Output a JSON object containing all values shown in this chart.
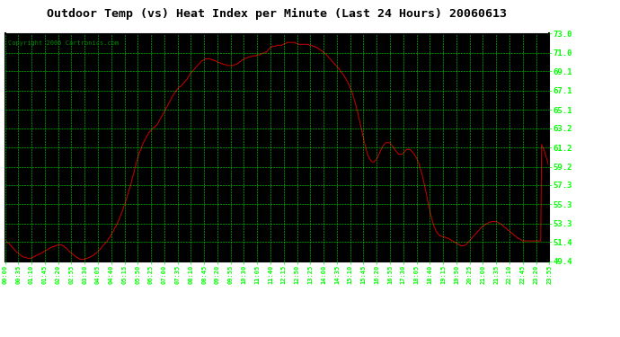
{
  "title": "Outdoor Temp (vs) Heat Index per Minute (Last 24 Hours) 20060613",
  "copyright": "Copyright 2006 Cartronics.com",
  "bg_color": "#000000",
  "fig_bg_color": "#ffffff",
  "grid_color": "#00ff00",
  "line_color": "#cc0000",
  "text_color": "#00ff00",
  "title_color": "#000000",
  "yticks": [
    49.4,
    51.4,
    53.3,
    55.3,
    57.3,
    59.2,
    61.2,
    63.2,
    65.1,
    67.1,
    69.1,
    71.0,
    73.0
  ],
  "ymin": 49.4,
  "ymax": 73.0,
  "xtick_labels": [
    "00:00",
    "00:35",
    "01:10",
    "01:45",
    "02:20",
    "02:55",
    "03:30",
    "04:05",
    "04:40",
    "05:15",
    "05:50",
    "06:25",
    "07:00",
    "07:35",
    "08:10",
    "08:45",
    "09:20",
    "09:55",
    "10:30",
    "11:05",
    "11:40",
    "12:15",
    "12:50",
    "13:25",
    "14:00",
    "14:35",
    "15:10",
    "15:45",
    "16:20",
    "16:55",
    "17:30",
    "18:05",
    "18:40",
    "19:15",
    "19:50",
    "20:25",
    "21:00",
    "21:35",
    "22:10",
    "22:45",
    "23:20",
    "23:55"
  ],
  "data_y": [
    51.6,
    51.5,
    51.4,
    51.3,
    51.3,
    51.2,
    51.1,
    51.0,
    50.9,
    50.8,
    50.7,
    50.6,
    50.5,
    50.4,
    50.3,
    50.3,
    50.2,
    50.1,
    50.0,
    50.0,
    49.9,
    49.9,
    49.8,
    49.8,
    49.8,
    49.8,
    49.7,
    49.7,
    49.7,
    49.7,
    49.7,
    49.8,
    49.8,
    49.8,
    49.9,
    49.9,
    50.0,
    50.0,
    50.1,
    50.1,
    50.1,
    50.2,
    50.2,
    50.3,
    50.3,
    50.4,
    50.4,
    50.5,
    50.5,
    50.6,
    50.6,
    50.7,
    50.7,
    50.8,
    50.8,
    50.9,
    50.9,
    50.9,
    51.0,
    51.0,
    51.0,
    51.1,
    51.1,
    51.1,
    51.1,
    51.1,
    51.1,
    51.0,
    51.0,
    50.9,
    50.8,
    50.8,
    50.7,
    50.6,
    50.5,
    50.4,
    50.3,
    50.3,
    50.2,
    50.1,
    50.0,
    50.0,
    49.9,
    49.8,
    49.8,
    49.7,
    49.7,
    49.6,
    49.6,
    49.6,
    49.6,
    49.6,
    49.6,
    49.6,
    49.7,
    49.7,
    49.7,
    49.8,
    49.8,
    49.8,
    49.9,
    49.9,
    50.0,
    50.0,
    50.1,
    50.2,
    50.2,
    50.3,
    50.4,
    50.5,
    50.6,
    50.7,
    50.8,
    50.9,
    51.0,
    51.1,
    51.2,
    51.3,
    51.4,
    51.5,
    51.7,
    51.8,
    51.9,
    52.1,
    52.2,
    52.4,
    52.5,
    52.7,
    52.9,
    53.0,
    53.2,
    53.4,
    53.6,
    53.8,
    54.0,
    54.3,
    54.5,
    54.7,
    55.0,
    55.3,
    55.5,
    55.8,
    56.1,
    56.4,
    56.7,
    57.0,
    57.3,
    57.6,
    58.0,
    58.3,
    58.6,
    59.0,
    59.3,
    59.7,
    60.0,
    60.3,
    60.6,
    60.8,
    61.0,
    61.3,
    61.5,
    61.7,
    61.9,
    62.0,
    62.2,
    62.4,
    62.5,
    62.7,
    62.8,
    62.9,
    63.0,
    63.1,
    63.2,
    63.3,
    63.3,
    63.4,
    63.5,
    63.6,
    63.7,
    63.9,
    64.1,
    64.2,
    64.4,
    64.5,
    64.7,
    64.9,
    65.0,
    65.2,
    65.4,
    65.5,
    65.7,
    65.9,
    66.0,
    66.2,
    66.4,
    66.5,
    66.7,
    66.8,
    67.0,
    67.1,
    67.2,
    67.3,
    67.4,
    67.5,
    67.5,
    67.6,
    67.7,
    67.8,
    67.9,
    68.0,
    68.1,
    68.2,
    68.3,
    68.5,
    68.6,
    68.8,
    68.9,
    69.0,
    69.1,
    69.2,
    69.3,
    69.4,
    69.5,
    69.6,
    69.7,
    69.8,
    69.9,
    70.0,
    70.1,
    70.2,
    70.2,
    70.3,
    70.3,
    70.4,
    70.4,
    70.4,
    70.4,
    70.4,
    70.4,
    70.4,
    70.3,
    70.3,
    70.3,
    70.2,
    70.2,
    70.2,
    70.1,
    70.1,
    70.0,
    70.0,
    70.0,
    69.9,
    69.9,
    69.9,
    69.8,
    69.8,
    69.8,
    69.8,
    69.7,
    69.7,
    69.7,
    69.7,
    69.7,
    69.7,
    69.7,
    69.7,
    69.7,
    69.8,
    69.8,
    69.8,
    69.9,
    69.9,
    70.0,
    70.1,
    70.1,
    70.2,
    70.3,
    70.3,
    70.4,
    70.4,
    70.5,
    70.5,
    70.5,
    70.6,
    70.6,
    70.6,
    70.6,
    70.7,
    70.7,
    70.7,
    70.7,
    70.7,
    70.7,
    70.8,
    70.8,
    70.8,
    70.8,
    70.9,
    70.9,
    70.9,
    71.0,
    71.0,
    71.0,
    71.1,
    71.1,
    71.2,
    71.3,
    71.4,
    71.5,
    71.6,
    71.6,
    71.7,
    71.7,
    71.7,
    71.7,
    71.7,
    71.8,
    71.8,
    71.8,
    71.8,
    71.8,
    71.8,
    71.8,
    71.9,
    71.9,
    72.0,
    72.0,
    72.0,
    72.1,
    72.1,
    72.1,
    72.1,
    72.1,
    72.1,
    72.1,
    72.1,
    72.1,
    72.1,
    72.0,
    72.0,
    72.0,
    71.9,
    71.9,
    71.9,
    71.9,
    71.9,
    71.9,
    71.9,
    71.9,
    71.9,
    71.9,
    71.9,
    71.9,
    71.9,
    71.8,
    71.8,
    71.8,
    71.8,
    71.7,
    71.7,
    71.7,
    71.6,
    71.6,
    71.5,
    71.5,
    71.4,
    71.4,
    71.3,
    71.2,
    71.2,
    71.1,
    71.0,
    71.0,
    70.9,
    70.8,
    70.7,
    70.6,
    70.5,
    70.4,
    70.3,
    70.2,
    70.1,
    70.0,
    69.9,
    69.8,
    69.7,
    69.6,
    69.5,
    69.4,
    69.3,
    69.2,
    69.0,
    68.9,
    68.8,
    68.7,
    68.5,
    68.4,
    68.2,
    68.1,
    67.9,
    67.7,
    67.5,
    67.3,
    67.1,
    66.8,
    66.5,
    66.2,
    65.9,
    65.6,
    65.2,
    64.9,
    64.5,
    64.1,
    63.7,
    63.3,
    62.9,
    62.5,
    62.1,
    61.7,
    61.3,
    61.0,
    60.7,
    60.4,
    60.2,
    60.0,
    59.9,
    59.8,
    59.7,
    59.7,
    59.7,
    59.8,
    59.9,
    60.0,
    60.1,
    60.3,
    60.5,
    60.7,
    60.9,
    61.1,
    61.3,
    61.4,
    61.5,
    61.6,
    61.7,
    61.7,
    61.7,
    61.7,
    61.7,
    61.6,
    61.5,
    61.4,
    61.3,
    61.2,
    61.0,
    60.9,
    60.8,
    60.7,
    60.6,
    60.5,
    60.5,
    60.5,
    60.5,
    60.5,
    60.6,
    60.7,
    60.8,
    60.9,
    61.0,
    61.0,
    61.0,
    61.0,
    61.0,
    60.9,
    60.8,
    60.7,
    60.6,
    60.5,
    60.3,
    60.2,
    60.0,
    59.8,
    59.6,
    59.3,
    59.0,
    58.7,
    58.4,
    58.0,
    57.6,
    57.2,
    56.8,
    56.4,
    55.9,
    55.5,
    55.1,
    54.7,
    54.3,
    53.9,
    53.6,
    53.3,
    53.0,
    52.8,
    52.6,
    52.4,
    52.3,
    52.2,
    52.1,
    52.0,
    52.0,
    52.0,
    51.9,
    51.9,
    51.9,
    51.9,
    51.8,
    51.8,
    51.8,
    51.7,
    51.7,
    51.6,
    51.6,
    51.5,
    51.5,
    51.4,
    51.4,
    51.3,
    51.3,
    51.2,
    51.2,
    51.1,
    51.1,
    51.0,
    51.0,
    51.0,
    51.0,
    51.0,
    51.1,
    51.1,
    51.2,
    51.3,
    51.4,
    51.5,
    51.6,
    51.7,
    51.8,
    51.9,
    52.0,
    52.1,
    52.2,
    52.3,
    52.4,
    52.5,
    52.6,
    52.7,
    52.8,
    52.9,
    53.0,
    53.0,
    53.1,
    53.2,
    53.2,
    53.3,
    53.3,
    53.4,
    53.4,
    53.4,
    53.5,
    53.5,
    53.5,
    53.5,
    53.5,
    53.5,
    53.5,
    53.5,
    53.4,
    53.4,
    53.3,
    53.3,
    53.2,
    53.2,
    53.1,
    53.0,
    52.9,
    52.9,
    52.8,
    52.7,
    52.6,
    52.6,
    52.5,
    52.4,
    52.3,
    52.3,
    52.2,
    52.1,
    52.0,
    52.0,
    51.9,
    51.8,
    51.8,
    51.7,
    51.7,
    51.6,
    51.6,
    51.5,
    51.5,
    51.5,
    51.5,
    51.5,
    51.5,
    51.5,
    51.5,
    51.5,
    51.5,
    51.5,
    51.5,
    51.5,
    51.5,
    51.5,
    51.5,
    51.5,
    51.5,
    51.5,
    51.5,
    51.5,
    51.5,
    61.5,
    61.3,
    61.1,
    60.9,
    60.6,
    60.3,
    60.0,
    59.7,
    59.4,
    59.1
  ]
}
